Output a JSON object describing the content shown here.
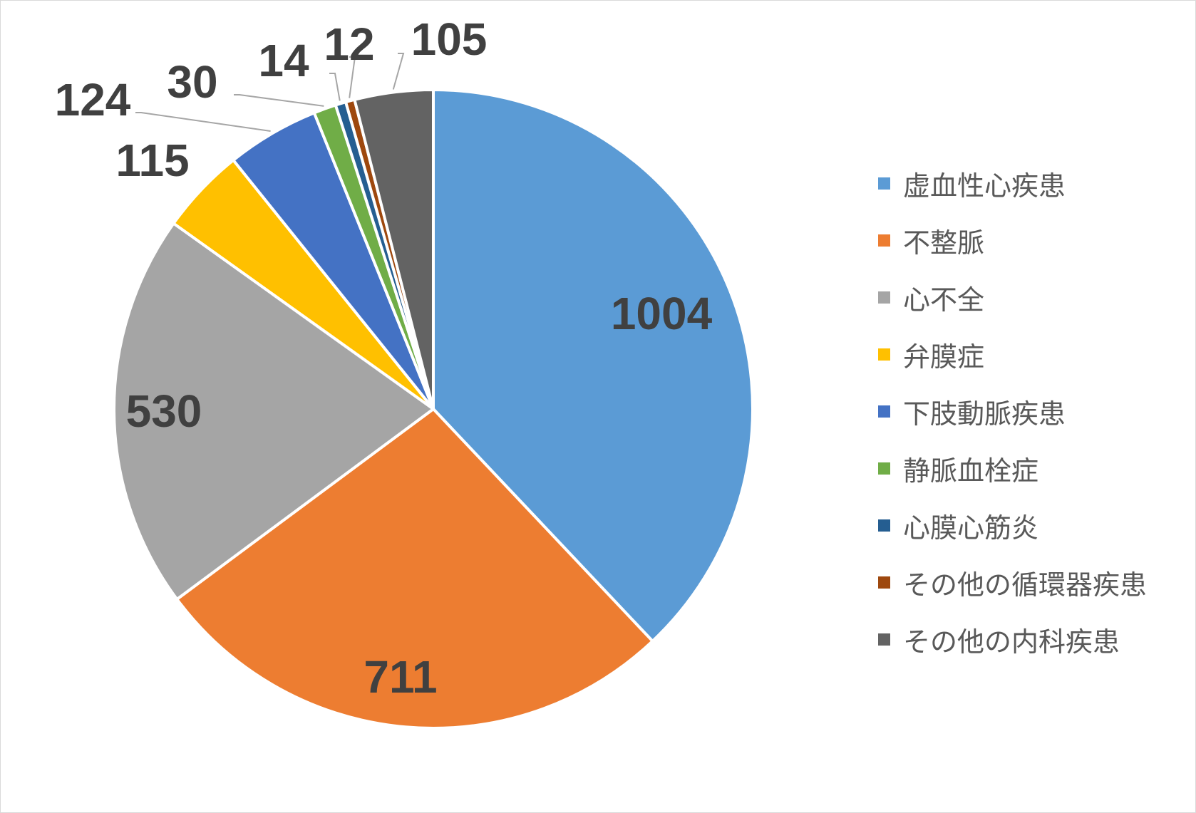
{
  "chart_data": {
    "type": "pie",
    "title": "",
    "legend_position": "right",
    "slices": [
      {
        "label": "虚血性心疾患",
        "value": 1004,
        "color": "#5B9BD5"
      },
      {
        "label": "不整脈",
        "value": 711,
        "color": "#ED7D31"
      },
      {
        "label": "心不全",
        "value": 530,
        "color": "#A5A5A5"
      },
      {
        "label": "弁膜症",
        "value": 115,
        "color": "#FFC000"
      },
      {
        "label": "下肢動脈疾患",
        "value": 124,
        "color": "#4472C4"
      },
      {
        "label": "静脈血栓症",
        "value": 30,
        "color": "#70AD47"
      },
      {
        "label": "心膜心筋炎",
        "value": 14,
        "color": "#255E91"
      },
      {
        "label": "その他の循環器疾患",
        "value": 12,
        "color": "#9E480E"
      },
      {
        "label": "その他の内科疾患",
        "value": 105,
        "color": "#636363"
      }
    ]
  }
}
